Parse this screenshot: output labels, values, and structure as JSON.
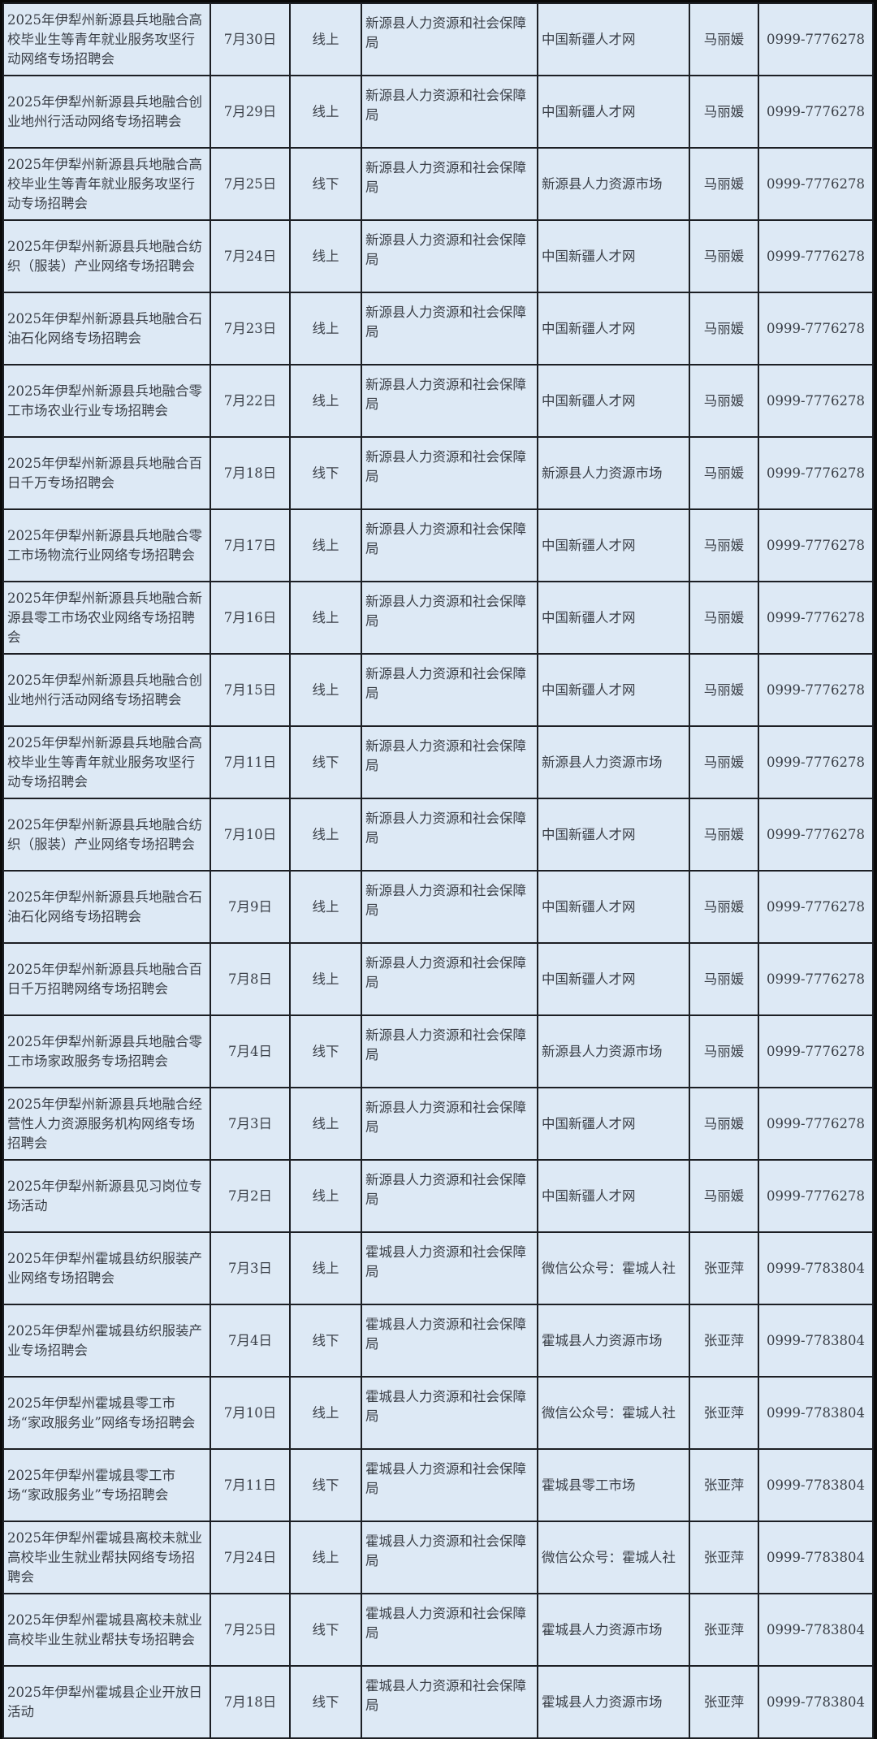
{
  "rows": [
    {
      "name": "2025年伊犁州新源县兵地融合高校毕业生等青年就业服务攻坚行动网络专场招聘会",
      "date": "7月30日",
      "mode": "线上",
      "organizer": "新源县人力资源和社会保障局",
      "venue": "中国新疆人才网",
      "contact": "马丽媛",
      "phone": "0999-7776278"
    },
    {
      "name": "2025年伊犁州新源县兵地融合创业地州行活动网络专场招聘会",
      "date": "7月29日",
      "mode": "线上",
      "organizer": "新源县人力资源和社会保障局",
      "venue": "中国新疆人才网",
      "contact": "马丽媛",
      "phone": "0999-7776278"
    },
    {
      "name": "2025年伊犁州新源县兵地融合高校毕业生等青年就业服务攻坚行动专场招聘会",
      "date": "7月25日",
      "mode": "线下",
      "organizer": "新源县人力资源和社会保障局",
      "venue": "新源县人力资源市场",
      "contact": "马丽媛",
      "phone": "0999-7776278"
    },
    {
      "name": "2025年伊犁州新源县兵地融合纺织（服装）产业网络专场招聘会",
      "date": "7月24日",
      "mode": "线上",
      "organizer": "新源县人力资源和社会保障局",
      "venue": "中国新疆人才网",
      "contact": "马丽媛",
      "phone": "0999-7776278"
    },
    {
      "name": "2025年伊犁州新源县兵地融合石油石化网络专场招聘会",
      "date": "7月23日",
      "mode": "线上",
      "organizer": "新源县人力资源和社会保障局",
      "venue": "中国新疆人才网",
      "contact": "马丽媛",
      "phone": "0999-7776278"
    },
    {
      "name": "2025年伊犁州新源县兵地融合零工市场农业行业专场招聘会",
      "date": "7月22日",
      "mode": "线上",
      "organizer": "新源县人力资源和社会保障局",
      "venue": "中国新疆人才网",
      "contact": "马丽媛",
      "phone": "0999-7776278"
    },
    {
      "name": "2025年伊犁州新源县兵地融合百日千万专场招聘会",
      "date": "7月18日",
      "mode": "线下",
      "organizer": "新源县人力资源和社会保障局",
      "venue": "新源县人力资源市场",
      "contact": "马丽媛",
      "phone": "0999-7776278"
    },
    {
      "name": "2025年伊犁州新源县兵地融合零工市场物流行业网络专场招聘会",
      "date": "7月17日",
      "mode": "线上",
      "organizer": "新源县人力资源和社会保障局",
      "venue": "中国新疆人才网",
      "contact": "马丽媛",
      "phone": "0999-7776278"
    },
    {
      "name": "2025年伊犁州新源县兵地融合新源县零工市场农业网络专场招聘会",
      "date": "7月16日",
      "mode": "线上",
      "organizer": "新源县人力资源和社会保障局",
      "venue": "中国新疆人才网",
      "contact": "马丽媛",
      "phone": "0999-7776278"
    },
    {
      "name": "2025年伊犁州新源县兵地融合创业地州行活动网络专场招聘会",
      "date": "7月15日",
      "mode": "线上",
      "organizer": "新源县人力资源和社会保障局",
      "venue": "中国新疆人才网",
      "contact": "马丽媛",
      "phone": "0999-7776278"
    },
    {
      "name": "2025年伊犁州新源县兵地融合高校毕业生等青年就业服务攻坚行动专场招聘会",
      "date": "7月11日",
      "mode": "线下",
      "organizer": "新源县人力资源和社会保障局",
      "venue": "新源县人力资源市场",
      "contact": "马丽媛",
      "phone": "0999-7776278"
    },
    {
      "name": "2025年伊犁州新源县兵地融合纺织（服装）产业网络专场招聘会",
      "date": "7月10日",
      "mode": "线上",
      "organizer": "新源县人力资源和社会保障局",
      "venue": "中国新疆人才网",
      "contact": "马丽媛",
      "phone": "0999-7776278"
    },
    {
      "name": "2025年伊犁州新源县兵地融合石油石化网络专场招聘会",
      "date": "7月9日",
      "mode": "线上",
      "organizer": "新源县人力资源和社会保障局",
      "venue": "中国新疆人才网",
      "contact": "马丽媛",
      "phone": "0999-7776278"
    },
    {
      "name": "2025年伊犁州新源县兵地融合百日千万招聘网络专场招聘会",
      "date": "7月8日",
      "mode": "线上",
      "organizer": "新源县人力资源和社会保障局",
      "venue": "中国新疆人才网",
      "contact": "马丽媛",
      "phone": "0999-7776278"
    },
    {
      "name": "2025年伊犁州新源县兵地融合零工市场家政服务专场招聘会",
      "date": "7月4日",
      "mode": "线下",
      "organizer": "新源县人力资源和社会保障局",
      "venue": "新源县人力资源市场",
      "contact": "马丽媛",
      "phone": "0999-7776278"
    },
    {
      "name": "2025年伊犁州新源县兵地融合经营性人力资源服务机构网络专场招聘会",
      "date": "7月3日",
      "mode": "线上",
      "organizer": "新源县人力资源和社会保障局",
      "venue": "中国新疆人才网",
      "contact": "马丽媛",
      "phone": "0999-7776278"
    },
    {
      "name": "2025年伊犁州新源县见习岗位专场活动",
      "date": "7月2日",
      "mode": "线上",
      "organizer": "新源县人力资源和社会保障局",
      "venue": "中国新疆人才网",
      "contact": "马丽媛",
      "phone": "0999-7776278"
    },
    {
      "name": "2025年伊犁州霍城县纺织服装产业网络专场招聘会",
      "date": "7月3日",
      "mode": "线上",
      "organizer": "霍城县人力资源和社会保障局",
      "venue": "微信公众号：霍城人社",
      "contact": "张亚萍",
      "phone": "0999-7783804"
    },
    {
      "name": "2025年伊犁州霍城县纺织服装产业专场招聘会",
      "date": "7月4日",
      "mode": "线下",
      "organizer": "霍城县人力资源和社会保障局",
      "venue": "霍城县人力资源市场",
      "contact": "张亚萍",
      "phone": "0999-7783804"
    },
    {
      "name": "2025年伊犁州霍城县零工市场“家政服务业”网络专场招聘会",
      "date": "7月10日",
      "mode": "线上",
      "organizer": "霍城县人力资源和社会保障局",
      "venue": "微信公众号：霍城人社",
      "contact": "张亚萍",
      "phone": "0999-7783804"
    },
    {
      "name": "2025年伊犁州霍城县零工市场“家政服务业”专场招聘会",
      "date": "7月11日",
      "mode": "线下",
      "organizer": "霍城县人力资源和社会保障局",
      "venue": "霍城县零工市场",
      "contact": "张亚萍",
      "phone": "0999-7783804"
    },
    {
      "name": "2025年伊犁州霍城县离校未就业高校毕业生就业帮扶网络专场招聘会",
      "date": "7月24日",
      "mode": "线上",
      "organizer": "霍城县人力资源和社会保障局",
      "venue": "微信公众号：霍城人社",
      "contact": "张亚萍",
      "phone": "0999-7783804"
    },
    {
      "name": "2025年伊犁州霍城县离校未就业高校毕业生就业帮扶专场招聘会",
      "date": "7月25日",
      "mode": "线下",
      "organizer": "霍城县人力资源和社会保障局",
      "venue": "霍城县人力资源市场",
      "contact": "张亚萍",
      "phone": "0999-7783804"
    },
    {
      "name": "2025年伊犁州霍城县企业开放日活动",
      "date": "7月18日",
      "mode": "线下",
      "organizer": "霍城县人力资源和社会保障局",
      "venue": "霍城县人力资源市场",
      "contact": "张亚萍",
      "phone": "0999-7783804"
    }
  ]
}
